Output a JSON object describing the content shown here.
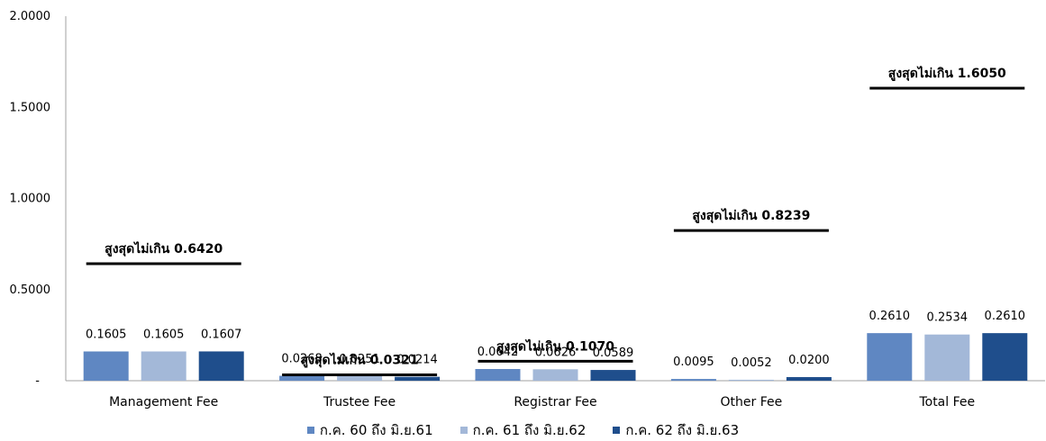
{
  "chart_data": {
    "type": "bar",
    "categories": [
      "Management Fee",
      "Trustee Fee",
      "Registrar Fee",
      "Other Fee",
      "Total Fee"
    ],
    "series": [
      {
        "name": "ก.ค. 60 ถึง มิ.ย.61",
        "color": "#5f87c2",
        "values": [
          0.1605,
          0.0268,
          0.0642,
          0.0095,
          0.261
        ],
        "labels": [
          "0.1605",
          "0.0268",
          "0.0642",
          "0.0095",
          "0.2610"
        ]
      },
      {
        "name": "ก.ค. 61 ถึง มิ.ย.62",
        "color": "#a3b8d8",
        "values": [
          0.1605,
          0.0251,
          0.0626,
          0.0052,
          0.2534
        ],
        "labels": [
          "0.1605",
          "0.0251",
          "0.0626",
          "0.0052",
          "0.2534"
        ]
      },
      {
        "name": "ก.ค. 62 ถึง มิ.ย.63",
        "color": "#1f4e8c",
        "values": [
          0.1607,
          0.0214,
          0.0589,
          0.02,
          0.261
        ],
        "labels": [
          "0.1607",
          "0.0214",
          "0.0589",
          "0.0200",
          "0.2610"
        ]
      }
    ],
    "limits": [
      {
        "category": "Management Fee",
        "value": 0.642,
        "label": "สูงสุดไม่เกิน 0.6420"
      },
      {
        "category": "Trustee Fee",
        "value": 0.0321,
        "label": "สูงสุดไม่เกิน 0.0321"
      },
      {
        "category": "Registrar Fee",
        "value": 0.107,
        "label": "สูงสุดไม่เกิน 0.1070"
      },
      {
        "category": "Other Fee",
        "value": 0.8239,
        "label": "สูงสุดไม่เกิน 0.8239"
      },
      {
        "category": "Total Fee",
        "value": 1.605,
        "label": "สูงสุดไม่เกิน 1.6050"
      }
    ],
    "yticks": [
      "-",
      "0.5000",
      "1.0000",
      "1.5000",
      "2.0000"
    ],
    "ylim": [
      0,
      2.0
    ],
    "legend_position": "bottom",
    "grid": false
  }
}
